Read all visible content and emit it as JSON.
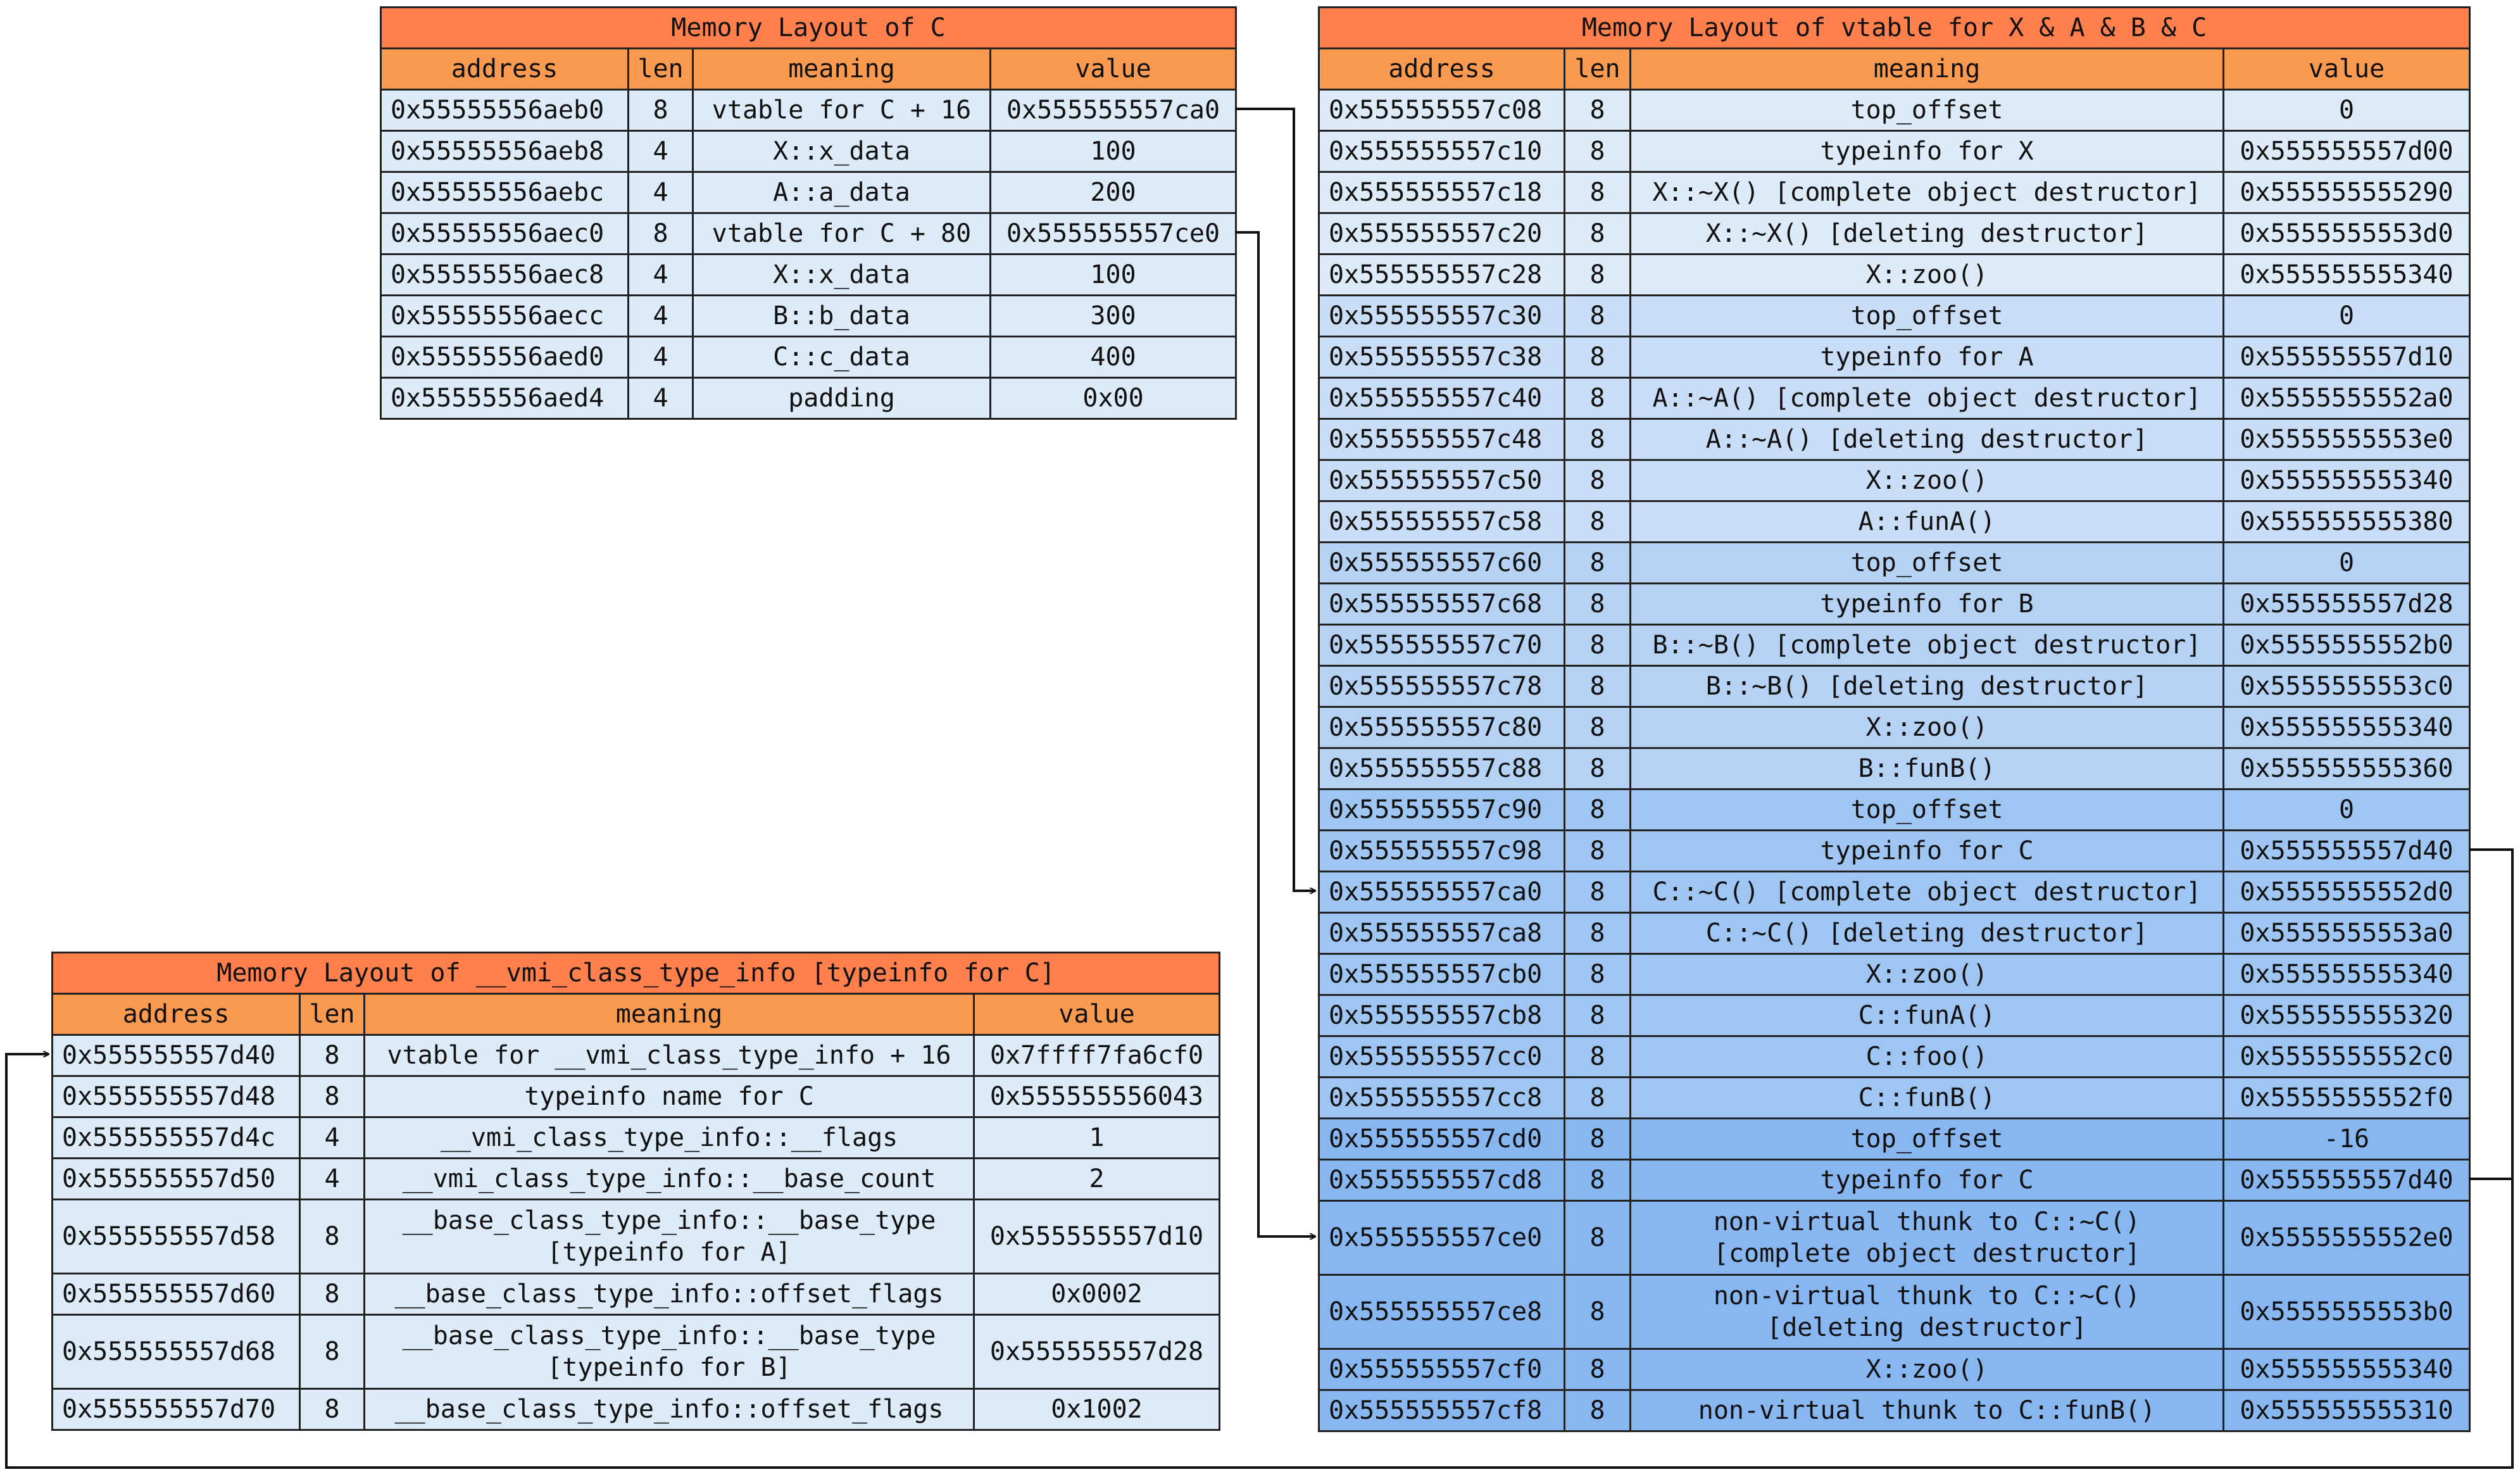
{
  "colors": {
    "title_bg": "#FF7F4D",
    "header_bg": "#FA9A50",
    "row_bg": "#DDEBF8",
    "vtable_group_bg": [
      "#DDEBF8",
      "#C9DEF6",
      "#B5D2F5",
      "#9FC5F3",
      "#88B6F0"
    ]
  },
  "table_c": {
    "title": "Memory Layout of C",
    "headers": [
      "address",
      "len",
      "meaning",
      "value"
    ],
    "rows": [
      {
        "address": "0x55555556aeb0",
        "len": "8",
        "meaning": "vtable for C + 16",
        "value": "0x555555557ca0"
      },
      {
        "address": "0x55555556aeb8",
        "len": "4",
        "meaning": "X::x_data",
        "value": "100"
      },
      {
        "address": "0x55555556aebc",
        "len": "4",
        "meaning": "A::a_data",
        "value": "200"
      },
      {
        "address": "0x55555556aec0",
        "len": "8",
        "meaning": "vtable for C + 80",
        "value": "0x555555557ce0"
      },
      {
        "address": "0x55555556aec8",
        "len": "4",
        "meaning": "X::x_data",
        "value": "100"
      },
      {
        "address": "0x55555556aecc",
        "len": "4",
        "meaning": "B::b_data",
        "value": "300"
      },
      {
        "address": "0x55555556aed0",
        "len": "4",
        "meaning": "C::c_data",
        "value": "400"
      },
      {
        "address": "0x55555556aed4",
        "len": "4",
        "meaning": "padding",
        "value": "0x00"
      }
    ]
  },
  "table_vtable": {
    "title": "Memory Layout of vtable for X & A & B & C",
    "headers": [
      "address",
      "len",
      "meaning",
      "value"
    ],
    "rows": [
      {
        "group": 0,
        "address": "0x555555557c08",
        "len": "8",
        "meaning": [
          "top_offset"
        ],
        "value": "0"
      },
      {
        "group": 0,
        "address": "0x555555557c10",
        "len": "8",
        "meaning": [
          "typeinfo for X"
        ],
        "value": "0x555555557d00"
      },
      {
        "group": 0,
        "address": "0x555555557c18",
        "len": "8",
        "meaning": [
          "X::~X() [complete object destructor]"
        ],
        "value": "0x555555555290"
      },
      {
        "group": 0,
        "address": "0x555555557c20",
        "len": "8",
        "meaning": [
          "X::~X() [deleting destructor]"
        ],
        "value": "0x5555555553d0"
      },
      {
        "group": 0,
        "address": "0x555555557c28",
        "len": "8",
        "meaning": [
          "X::zoo()"
        ],
        "value": "0x555555555340"
      },
      {
        "group": 1,
        "address": "0x555555557c30",
        "len": "8",
        "meaning": [
          "top_offset"
        ],
        "value": "0"
      },
      {
        "group": 1,
        "address": "0x555555557c38",
        "len": "8",
        "meaning": [
          "typeinfo for A"
        ],
        "value": "0x555555557d10"
      },
      {
        "group": 1,
        "address": "0x555555557c40",
        "len": "8",
        "meaning": [
          "A::~A() [complete object destructor]"
        ],
        "value": "0x5555555552a0"
      },
      {
        "group": 1,
        "address": "0x555555557c48",
        "len": "8",
        "meaning": [
          "A::~A() [deleting destructor]"
        ],
        "value": "0x5555555553e0"
      },
      {
        "group": 1,
        "address": "0x555555557c50",
        "len": "8",
        "meaning": [
          "X::zoo()"
        ],
        "value": "0x555555555340"
      },
      {
        "group": 1,
        "address": "0x555555557c58",
        "len": "8",
        "meaning": [
          "A::funA()"
        ],
        "value": "0x555555555380"
      },
      {
        "group": 2,
        "address": "0x555555557c60",
        "len": "8",
        "meaning": [
          "top_offset"
        ],
        "value": "0"
      },
      {
        "group": 2,
        "address": "0x555555557c68",
        "len": "8",
        "meaning": [
          "typeinfo for B"
        ],
        "value": "0x555555557d28"
      },
      {
        "group": 2,
        "address": "0x555555557c70",
        "len": "8",
        "meaning": [
          "B::~B() [complete object destructor]"
        ],
        "value": "0x5555555552b0"
      },
      {
        "group": 2,
        "address": "0x555555557c78",
        "len": "8",
        "meaning": [
          "B::~B() [deleting destructor]"
        ],
        "value": "0x5555555553c0"
      },
      {
        "group": 2,
        "address": "0x555555557c80",
        "len": "8",
        "meaning": [
          "X::zoo()"
        ],
        "value": "0x555555555340"
      },
      {
        "group": 2,
        "address": "0x555555557c88",
        "len": "8",
        "meaning": [
          "B::funB()"
        ],
        "value": "0x555555555360"
      },
      {
        "group": 3,
        "address": "0x555555557c90",
        "len": "8",
        "meaning": [
          "top_offset"
        ],
        "value": "0"
      },
      {
        "group": 3,
        "address": "0x555555557c98",
        "len": "8",
        "meaning": [
          "typeinfo for C"
        ],
        "value": "0x555555557d40"
      },
      {
        "group": 3,
        "address": "0x555555557ca0",
        "len": "8",
        "meaning": [
          "C::~C() [complete object destructor]"
        ],
        "value": "0x5555555552d0"
      },
      {
        "group": 3,
        "address": "0x555555557ca8",
        "len": "8",
        "meaning": [
          "C::~C() [deleting destructor]"
        ],
        "value": "0x5555555553a0"
      },
      {
        "group": 3,
        "address": "0x555555557cb0",
        "len": "8",
        "meaning": [
          "X::zoo()"
        ],
        "value": "0x555555555340"
      },
      {
        "group": 3,
        "address": "0x555555557cb8",
        "len": "8",
        "meaning": [
          "C::funA()"
        ],
        "value": "0x555555555320"
      },
      {
        "group": 3,
        "address": "0x555555557cc0",
        "len": "8",
        "meaning": [
          "C::foo()"
        ],
        "value": "0x5555555552c0"
      },
      {
        "group": 3,
        "address": "0x555555557cc8",
        "len": "8",
        "meaning": [
          "C::funB()"
        ],
        "value": "0x5555555552f0"
      },
      {
        "group": 4,
        "address": "0x555555557cd0",
        "len": "8",
        "meaning": [
          "top_offset"
        ],
        "value": "-16"
      },
      {
        "group": 4,
        "address": "0x555555557cd8",
        "len": "8",
        "meaning": [
          "typeinfo for C"
        ],
        "value": "0x555555557d40"
      },
      {
        "group": 4,
        "address": "0x555555557ce0",
        "len": "8",
        "meaning": [
          "non-virtual thunk to C::~C()",
          "[complete object destructor]"
        ],
        "value": "0x5555555552e0"
      },
      {
        "group": 4,
        "address": "0x555555557ce8",
        "len": "8",
        "meaning": [
          "non-virtual thunk to C::~C()",
          "[deleting destructor]"
        ],
        "value": "0x5555555553b0"
      },
      {
        "group": 4,
        "address": "0x555555557cf0",
        "len": "8",
        "meaning": [
          "X::zoo()"
        ],
        "value": "0x555555555340"
      },
      {
        "group": 4,
        "address": "0x555555557cf8",
        "len": "8",
        "meaning": [
          "non-virtual thunk to C::funB()"
        ],
        "value": "0x555555555310"
      }
    ]
  },
  "table_typeinfo": {
    "title": "Memory Layout of __vmi_class_type_info [typeinfo for C]",
    "headers": [
      "address",
      "len",
      "meaning",
      "value"
    ],
    "rows": [
      {
        "address": "0x555555557d40",
        "len": "8",
        "meaning": [
          "vtable for __vmi_class_type_info + 16"
        ],
        "value": "0x7ffff7fa6cf0"
      },
      {
        "address": "0x555555557d48",
        "len": "8",
        "meaning": [
          "typeinfo name for C"
        ],
        "value": "0x555555556043"
      },
      {
        "address": "0x555555557d4c",
        "len": "4",
        "meaning": [
          "__vmi_class_type_info::__flags"
        ],
        "value": "1"
      },
      {
        "address": "0x555555557d50",
        "len": "4",
        "meaning": [
          "__vmi_class_type_info::__base_count"
        ],
        "value": "2"
      },
      {
        "address": "0x555555557d58",
        "len": "8",
        "meaning": [
          "__base_class_type_info::__base_type",
          "[typeinfo for A]"
        ],
        "value": "0x555555557d10"
      },
      {
        "address": "0x555555557d60",
        "len": "8",
        "meaning": [
          "__base_class_type_info::offset_flags"
        ],
        "value": "0x0002"
      },
      {
        "address": "0x555555557d68",
        "len": "8",
        "meaning": [
          "__base_class_type_info::__base_type",
          "[typeinfo for B]"
        ],
        "value": "0x555555557d28"
      },
      {
        "address": "0x555555557d70",
        "len": "8",
        "meaning": [
          "__base_class_type_info::offset_flags"
        ],
        "value": "0x1002"
      }
    ]
  }
}
